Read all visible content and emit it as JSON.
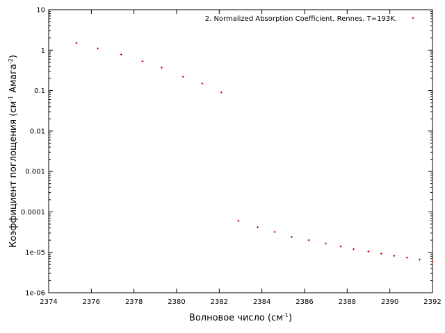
{
  "chart_data": {
    "type": "scatter",
    "title": "",
    "xlabel": "Волновое число (см",
    "xlabel_sup": "-1",
    "xlabel_end": ")",
    "ylabel": "Коэффициент поглощения (см",
    "ylabel_sup1": "-1",
    "ylabel_mid": " Амага",
    "ylabel_sup2": "-2",
    "ylabel_end": ")",
    "xlim": [
      2374,
      2392
    ],
    "ylim": [
      1e-06,
      10
    ],
    "yscale": "log",
    "grid": false,
    "legend_position": "top-right",
    "x_ticks": [
      "2374",
      "2376",
      "2378",
      "2380",
      "2382",
      "2384",
      "2386",
      "2388",
      "2390",
      "2392"
    ],
    "y_ticks": [
      "1e-06",
      "1e-05",
      "0.0001",
      "0.001",
      "0.01",
      "0.1",
      "1",
      "10"
    ],
    "series": [
      {
        "name": "2. Normalized Absorption Coefficient. Rennes. T=193K.",
        "color": "#cc0000",
        "marker": "plus",
        "points": [
          {
            "x": 2375.3,
            "y": 1.5
          },
          {
            "x": 2376.3,
            "y": 1.1
          },
          {
            "x": 2377.4,
            "y": 0.78
          },
          {
            "x": 2378.4,
            "y": 0.53
          },
          {
            "x": 2379.3,
            "y": 0.37
          },
          {
            "x": 2380.3,
            "y": 0.22
          },
          {
            "x": 2381.2,
            "y": 0.15
          },
          {
            "x": 2382.1,
            "y": 0.09
          },
          {
            "x": 2382.9,
            "y": 6e-05
          },
          {
            "x": 2383.8,
            "y": 4.2e-05
          },
          {
            "x": 2384.6,
            "y": 3.2e-05
          },
          {
            "x": 2385.4,
            "y": 2.4e-05
          },
          {
            "x": 2386.2,
            "y": 2e-05
          },
          {
            "x": 2387.0,
            "y": 1.65e-05
          },
          {
            "x": 2387.7,
            "y": 1.4e-05
          },
          {
            "x": 2388.3,
            "y": 1.2e-05
          },
          {
            "x": 2389.0,
            "y": 1.05e-05
          },
          {
            "x": 2389.6,
            "y": 9.3e-06
          },
          {
            "x": 2390.2,
            "y": 8.2e-06
          },
          {
            "x": 2390.8,
            "y": 7.4e-06
          },
          {
            "x": 2391.4,
            "y": 6.6e-06
          },
          {
            "x": 2392.0,
            "y": 6e-06
          }
        ]
      }
    ]
  }
}
